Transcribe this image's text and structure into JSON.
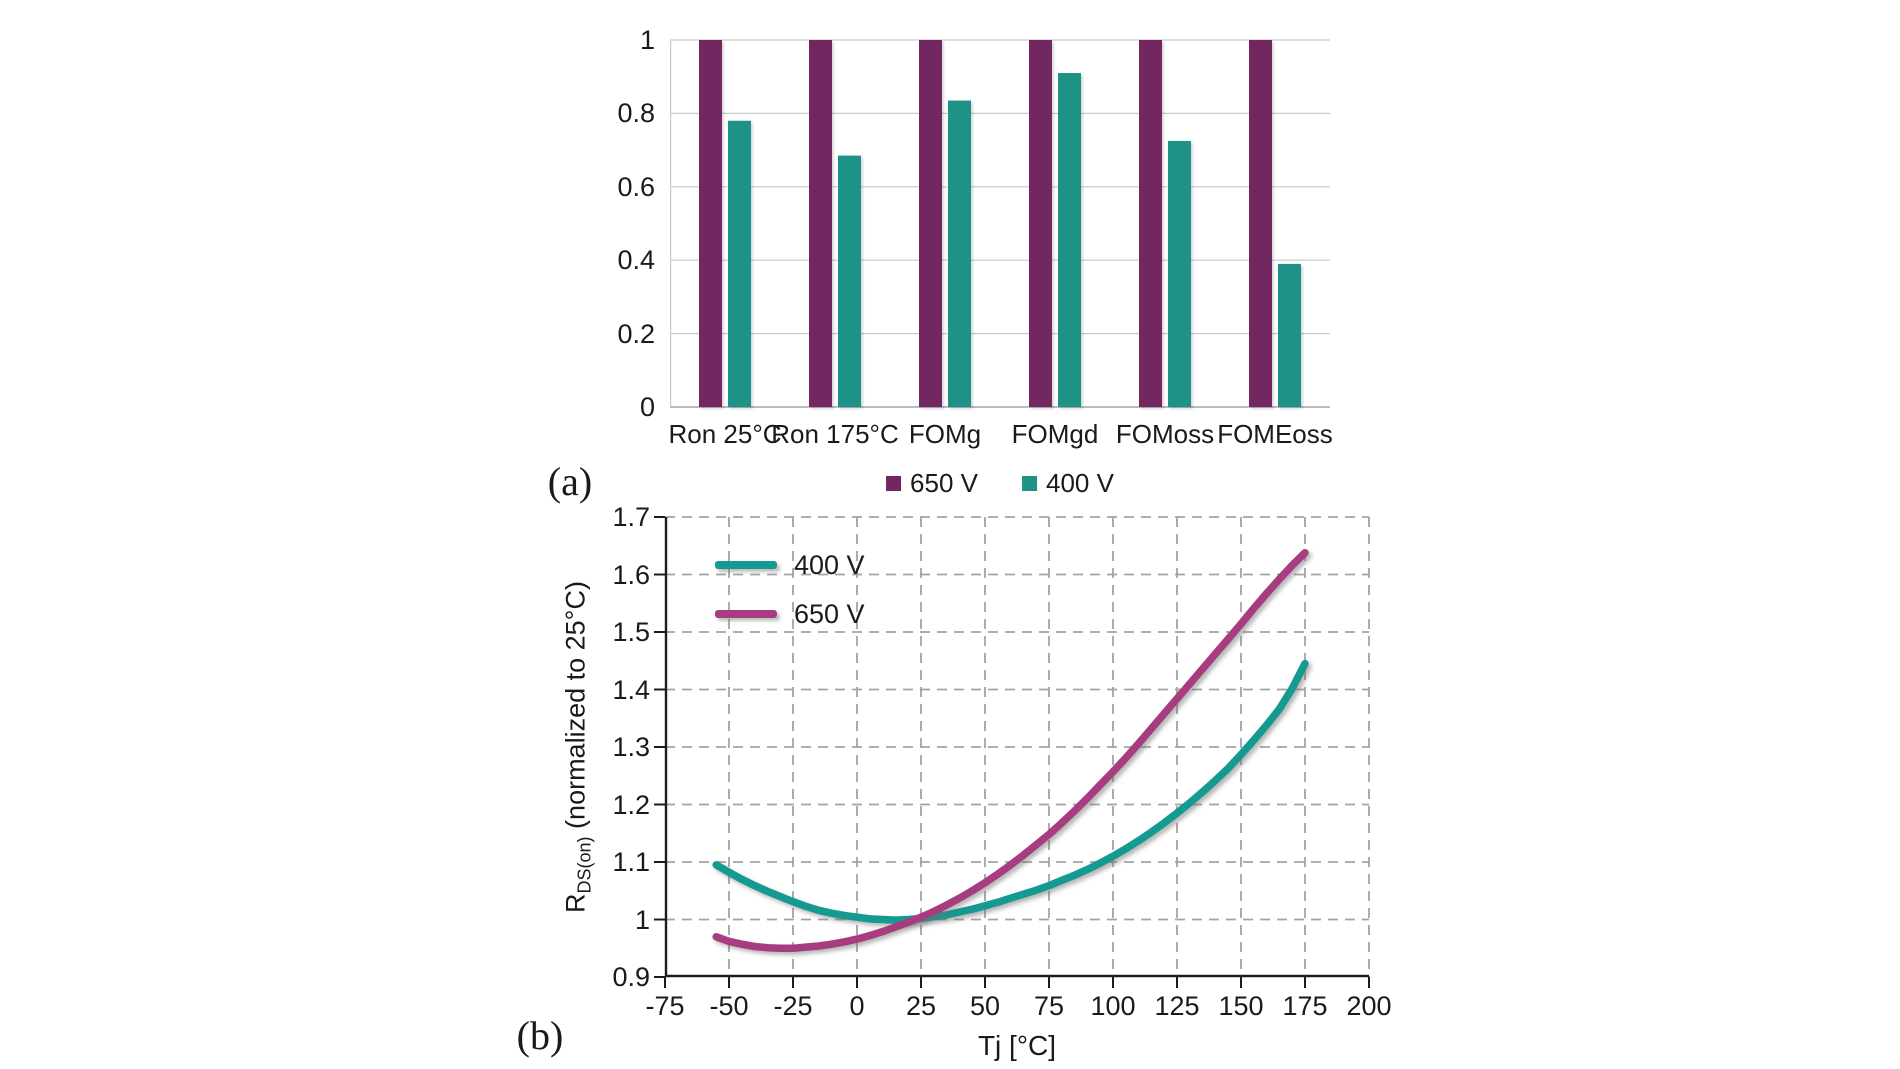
{
  "panel_a": {
    "label": "(a)",
    "legend": [
      {
        "label": "650 V"
      },
      {
        "label": "400 V"
      }
    ]
  },
  "panel_b": {
    "label": "(b)",
    "xlabel": "Tj [°C]",
    "ylabel_base": "R",
    "ylabel_sub": "DS(on)",
    "ylabel_rest": " (normalized to 25°C)",
    "legend": [
      {
        "label": "400 V"
      },
      {
        "label": "650 V"
      }
    ]
  },
  "colors": {
    "bar_650v": "#722761",
    "bar_400v": "#1F9288",
    "line_400v": "#159A91",
    "line_650v": "#A73C80",
    "solid_grid": "#c9c9c9",
    "baseline": "#a6a6a6",
    "dashed_grid": "#a3a3a3",
    "axis": "#1c1c1c"
  },
  "chart_data": [
    {
      "type": "bar",
      "categories": [
        "Ron 25°C",
        "Ron 175°C",
        "FOMg",
        "FOMgd",
        "FOMoss",
        "FOMEoss"
      ],
      "series": [
        {
          "name": "650 V",
          "color": "#722761",
          "values": [
            1,
            1,
            1,
            1,
            1,
            1
          ]
        },
        {
          "name": "400 V",
          "color": "#1F9288",
          "values": [
            0.78,
            0.685,
            0.835,
            0.91,
            0.725,
            0.39
          ]
        }
      ],
      "ylim": [
        0,
        1
      ],
      "ytick_labels": [
        "0",
        "0.2",
        "0.4",
        "0.6",
        "0.8",
        "1"
      ],
      "grid": "horizontal-solid",
      "legend_position": "bottom-center"
    },
    {
      "type": "line",
      "xlabel": "Tj [°C]",
      "ylabel": "RDS(on) (normalized to 25°C)",
      "xlim": [
        -75,
        200
      ],
      "ylim": [
        0.9,
        1.7
      ],
      "xtick_labels": [
        "-75",
        "-50",
        "-25",
        "0",
        "25",
        "50",
        "75",
        "100",
        "125",
        "150",
        "175",
        "200"
      ],
      "ytick_labels": [
        "0.9",
        "1",
        "1.1",
        "1.2",
        "1.3",
        "1.4",
        "1.5",
        "1.6",
        "1.7"
      ],
      "grid": "both-dashed",
      "legend_position": "top-left",
      "series": [
        {
          "name": "400 V",
          "color": "#159A91",
          "points": [
            [
              -55,
              1.095
            ],
            [
              -50,
              1.082
            ],
            [
              -45,
              1.07
            ],
            [
              -40,
              1.059
            ],
            [
              -35,
              1.049
            ],
            [
              -30,
              1.04
            ],
            [
              -25,
              1.031
            ],
            [
              -20,
              1.023
            ],
            [
              -15,
              1.016
            ],
            [
              -10,
              1.011
            ],
            [
              -5,
              1.007
            ],
            [
              0,
              1.004
            ],
            [
              5,
              1.001
            ],
            [
              10,
              1.0
            ],
            [
              15,
              0.999
            ],
            [
              20,
              1.0
            ],
            [
              25,
              1.002
            ],
            [
              30,
              1.005
            ],
            [
              35,
              1.008
            ],
            [
              40,
              1.013
            ],
            [
              45,
              1.018
            ],
            [
              50,
              1.024
            ],
            [
              55,
              1.03
            ],
            [
              60,
              1.037
            ],
            [
              65,
              1.044
            ],
            [
              70,
              1.051
            ],
            [
              75,
              1.059
            ],
            [
              80,
              1.068
            ],
            [
              85,
              1.077
            ],
            [
              90,
              1.087
            ],
            [
              95,
              1.098
            ],
            [
              100,
              1.11
            ],
            [
              105,
              1.123
            ],
            [
              110,
              1.137
            ],
            [
              115,
              1.152
            ],
            [
              120,
              1.168
            ],
            [
              125,
              1.185
            ],
            [
              130,
              1.203
            ],
            [
              135,
              1.222
            ],
            [
              140,
              1.242
            ],
            [
              145,
              1.263
            ],
            [
              150,
              1.287
            ],
            [
              155,
              1.312
            ],
            [
              160,
              1.338
            ],
            [
              165,
              1.366
            ],
            [
              170,
              1.402
            ],
            [
              175,
              1.445
            ]
          ]
        },
        {
          "name": "650 V",
          "color": "#A73C80",
          "points": [
            [
              -55,
              0.97
            ],
            [
              -50,
              0.962
            ],
            [
              -45,
              0.957
            ],
            [
              -40,
              0.953
            ],
            [
              -35,
              0.951
            ],
            [
              -30,
              0.95
            ],
            [
              -25,
              0.95
            ],
            [
              -20,
              0.952
            ],
            [
              -15,
              0.954
            ],
            [
              -10,
              0.957
            ],
            [
              -5,
              0.961
            ],
            [
              0,
              0.966
            ],
            [
              5,
              0.972
            ],
            [
              10,
              0.979
            ],
            [
              15,
              0.987
            ],
            [
              20,
              0.995
            ],
            [
              25,
              1.004
            ],
            [
              30,
              1.014
            ],
            [
              35,
              1.025
            ],
            [
              40,
              1.037
            ],
            [
              45,
              1.05
            ],
            [
              50,
              1.064
            ],
            [
              55,
              1.079
            ],
            [
              60,
              1.095
            ],
            [
              65,
              1.112
            ],
            [
              70,
              1.13
            ],
            [
              75,
              1.148
            ],
            [
              80,
              1.168
            ],
            [
              85,
              1.189
            ],
            [
              90,
              1.211
            ],
            [
              95,
              1.234
            ],
            [
              100,
              1.257
            ],
            [
              105,
              1.281
            ],
            [
              110,
              1.306
            ],
            [
              115,
              1.332
            ],
            [
              120,
              1.358
            ],
            [
              125,
              1.384
            ],
            [
              130,
              1.41
            ],
            [
              135,
              1.436
            ],
            [
              140,
              1.462
            ],
            [
              145,
              1.488
            ],
            [
              150,
              1.514
            ],
            [
              155,
              1.541
            ],
            [
              160,
              1.567
            ],
            [
              165,
              1.592
            ],
            [
              170,
              1.616
            ],
            [
              175,
              1.638
            ]
          ]
        }
      ]
    }
  ]
}
